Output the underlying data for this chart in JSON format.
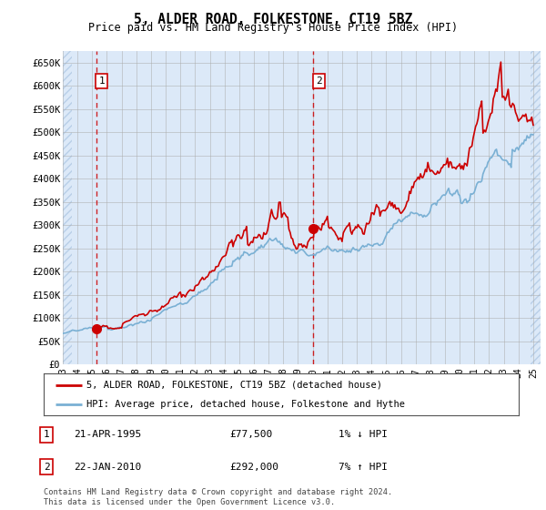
{
  "title": "5, ALDER ROAD, FOLKESTONE, CT19 5BZ",
  "subtitle": "Price paid vs. HM Land Registry's House Price Index (HPI)",
  "ylim": [
    0,
    675000
  ],
  "yticks": [
    0,
    50000,
    100000,
    150000,
    200000,
    250000,
    300000,
    350000,
    400000,
    450000,
    500000,
    550000,
    600000,
    650000
  ],
  "ytick_labels": [
    "£0",
    "£50K",
    "£100K",
    "£150K",
    "£200K",
    "£250K",
    "£300K",
    "£350K",
    "£400K",
    "£450K",
    "£500K",
    "£550K",
    "£600K",
    "£650K"
  ],
  "xmin": 1993.0,
  "xmax": 2025.5,
  "xtick_years": [
    1993,
    1994,
    1995,
    1996,
    1997,
    1998,
    1999,
    2000,
    2001,
    2002,
    2003,
    2004,
    2005,
    2006,
    2007,
    2008,
    2009,
    2010,
    2011,
    2012,
    2013,
    2014,
    2015,
    2016,
    2017,
    2018,
    2019,
    2020,
    2021,
    2022,
    2023,
    2024,
    2025
  ],
  "bg_color": "#dce9f8",
  "hatch_color": "#b8cfe8",
  "grid_color": "#aaaaaa",
  "line_color_red": "#cc0000",
  "line_color_blue": "#7ab0d4",
  "sale1_x": 1995.3,
  "sale1_y": 77500,
  "sale2_x": 2010.05,
  "sale2_y": 292000,
  "legend_label_red": "5, ALDER ROAD, FOLKESTONE, CT19 5BZ (detached house)",
  "legend_label_blue": "HPI: Average price, detached house, Folkestone and Hythe",
  "table_row1": [
    "1",
    "21-APR-1995",
    "£77,500",
    "1% ↓ HPI"
  ],
  "table_row2": [
    "2",
    "22-JAN-2010",
    "£292,000",
    "7% ↑ HPI"
  ],
  "footer": "Contains HM Land Registry data © Crown copyright and database right 2024.\nThis data is licensed under the Open Government Licence v3.0."
}
